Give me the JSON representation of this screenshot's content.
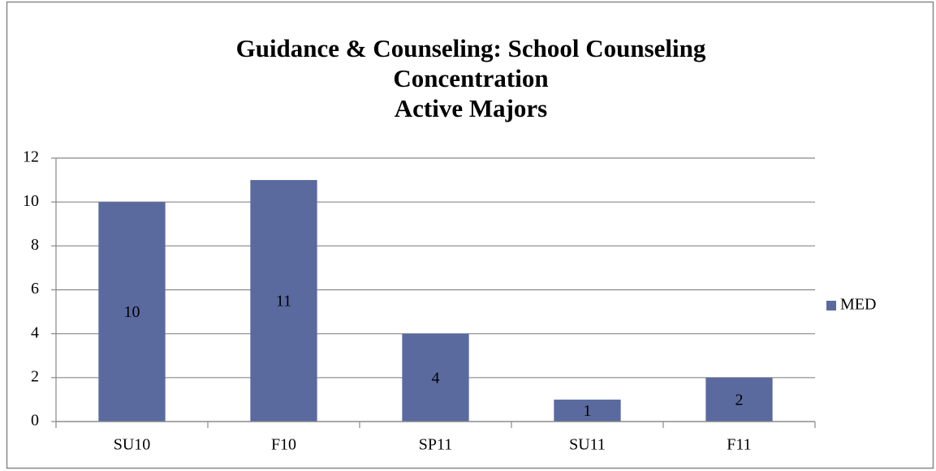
{
  "chart_data": {
    "type": "bar",
    "title": [
      "Guidance & Counseling: School Counseling",
      "Concentration",
      "Active Majors"
    ],
    "categories": [
      "SU10",
      "F10",
      "SP11",
      "SU11",
      "F11"
    ],
    "series": [
      {
        "name": "MED",
        "color": "#5a6a9f",
        "values": [
          10,
          11,
          4,
          1,
          2
        ]
      }
    ],
    "ylim": [
      0,
      12
    ],
    "yticks": [
      0,
      2,
      4,
      6,
      8,
      10,
      12
    ],
    "grid": true,
    "legend": "right"
  }
}
